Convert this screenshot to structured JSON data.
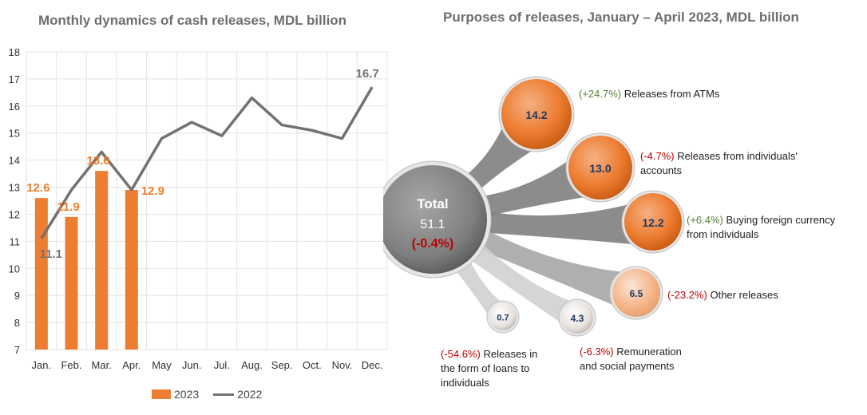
{
  "left_chart": {
    "title": "Monthly dynamics of cash releases, MDL billion",
    "legend": [
      {
        "label": "2023",
        "color": "#ED7D31"
      },
      {
        "label": "2022",
        "color": "#767171"
      }
    ]
  },
  "right_chart": {
    "title": "Purposes of releases, January – April 2023, MDL billion",
    "total": {
      "label": "Total",
      "value": "51.1",
      "change": "(-0.4%)"
    },
    "items": [
      {
        "value": "14.2",
        "change": "(+24.7%)",
        "label": "Releases from ATMs",
        "direction": "up"
      },
      {
        "value": "13.0",
        "change": "(-4.7%)",
        "label": "Releases from individuals' accounts",
        "direction": "down"
      },
      {
        "value": "12.2",
        "change": "(+6.4%)",
        "label": "Buying foreign currency from individuals",
        "direction": "up"
      },
      {
        "value": "6.5",
        "change": "(-23.2%)",
        "label": "Other releases",
        "direction": "down"
      },
      {
        "value": "4.3",
        "change": "(-6.3%)",
        "label": "Remuneration and social payments",
        "direction": "down"
      },
      {
        "value": "0.7",
        "change": "(-54.6%)",
        "label": "Releases in the form of loans to individuals",
        "direction": "down"
      }
    ],
    "colors": {
      "up": "#548235",
      "down": "#C00000",
      "bubble": "#ED7D31",
      "total": "#7F7F7F"
    }
  },
  "chart_data": [
    {
      "type": "bar",
      "title": "Monthly dynamics of cash releases, MDL billion",
      "categories": [
        "Jan.",
        "Feb.",
        "Mar.",
        "Apr.",
        "May",
        "Jun.",
        "Jul.",
        "Aug.",
        "Sep.",
        "Oct.",
        "Nov.",
        "Dec."
      ],
      "series": [
        {
          "name": "2023",
          "type": "bar",
          "values": [
            12.6,
            11.9,
            13.6,
            12.9,
            null,
            null,
            null,
            null,
            null,
            null,
            null,
            null
          ],
          "color": "#ED7D31"
        },
        {
          "name": "2022",
          "type": "line",
          "values": [
            11.1,
            12.9,
            14.3,
            12.9,
            14.8,
            15.4,
            14.9,
            16.3,
            15.3,
            15.1,
            14.8,
            16.7
          ],
          "color": "#767171"
        }
      ],
      "bar_labels": [
        "12.6",
        "11.9",
        "13.6",
        "12.9"
      ],
      "line_labels": {
        "0": "11.1",
        "11": "16.7"
      },
      "yticks": [
        "7",
        "8",
        "9",
        "10",
        "11",
        "12",
        "13",
        "14",
        "15",
        "16",
        "17",
        "18"
      ],
      "ylim": [
        7,
        18
      ],
      "grid": true,
      "legend_position": "bottom"
    },
    {
      "type": "bubble",
      "title": "Purposes of releases, January – April 2023, MDL billion",
      "total": 51.1,
      "total_change": "(-0.4%)",
      "categories": [
        "Releases from ATMs",
        "Releases from individuals' accounts",
        "Buying foreign currency from individuals",
        "Other releases",
        "Remuneration and social payments",
        "Releases in the form of loans to individuals"
      ],
      "values": [
        14.2,
        13.0,
        12.2,
        6.5,
        4.3,
        0.7
      ],
      "changes": [
        "(+24.7%)",
        "(-4.7%)",
        "(+6.4%)",
        "(-23.2%)",
        "(-6.3%)",
        "(-54.6%)"
      ]
    }
  ]
}
